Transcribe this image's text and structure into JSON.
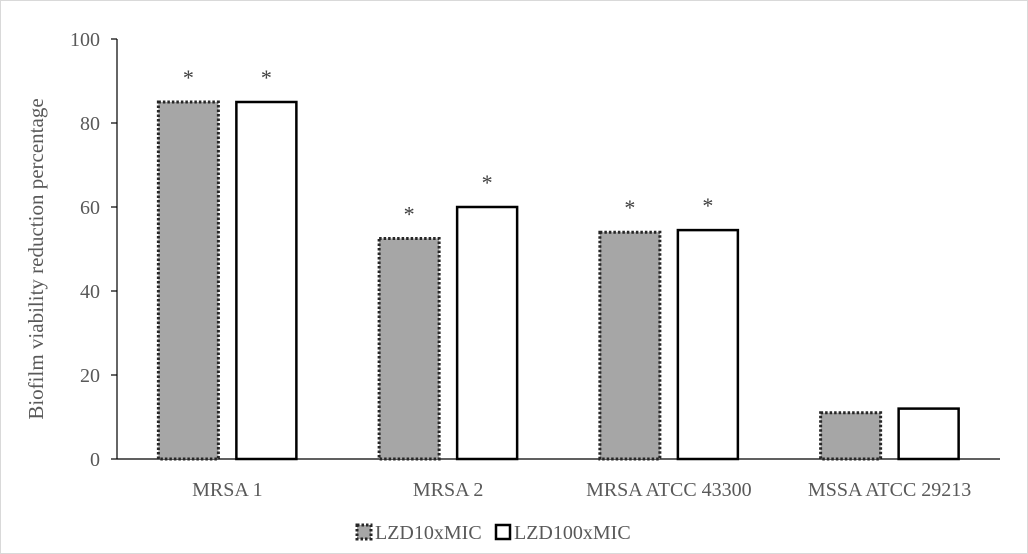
{
  "chart_data": {
    "type": "bar",
    "ylabel": "Biofilm viability reduction percentage",
    "xlabel": "",
    "ylim": [
      0,
      100
    ],
    "yticks": [
      0,
      20,
      40,
      60,
      80,
      100
    ],
    "categories": [
      "MRSA 1",
      "MRSA 2",
      "MRSA ATCC 43300",
      "MSSA ATCC 29213"
    ],
    "series": [
      {
        "name": "LZD10xMIC",
        "values": [
          85,
          52.5,
          54,
          11
        ],
        "significant": [
          "*",
          "*",
          "*",
          ""
        ],
        "fill": "#a6a6a6",
        "stroke": "#262626",
        "border": "dotted"
      },
      {
        "name": "LZD100xMIC",
        "values": [
          85,
          60,
          54.5,
          12
        ],
        "significant": [
          "*",
          "*",
          "*",
          ""
        ],
        "fill": "#ffffff",
        "stroke": "#000000",
        "border": "solid"
      }
    ],
    "grid": false,
    "legend_position": "bottom"
  }
}
